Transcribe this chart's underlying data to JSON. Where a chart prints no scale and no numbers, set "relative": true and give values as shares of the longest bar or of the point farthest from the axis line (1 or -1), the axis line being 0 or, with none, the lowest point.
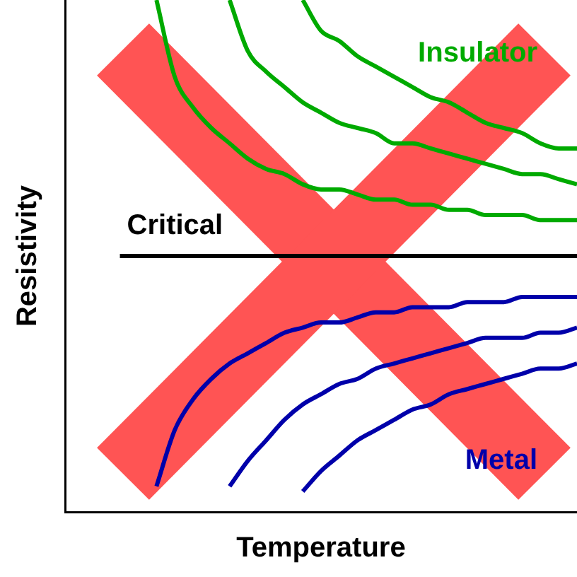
{
  "chart_data": {
    "type": "line",
    "relative": true,
    "xlabel": "Temperature",
    "ylabel": "Resistivity",
    "legend": false,
    "grid": false,
    "marker": "none",
    "line_style": "solid",
    "categories": [
      null,
      null,
      null,
      null,
      null,
      null,
      null,
      null,
      null,
      null,
      null,
      null,
      null,
      null,
      null,
      null,
      null,
      null,
      null,
      null,
      null,
      null,
      null,
      null,
      null,
      null,
      null,
      null,
      null
    ],
    "series": [
      {
        "color": "#00aa00",
        "values": [
          null,
          null,
          null,
          null,
          null,
          1.0,
          0.85,
          0.79,
          0.75,
          0.72,
          0.69,
          0.67,
          0.66,
          0.64,
          0.63,
          0.63,
          0.62,
          0.61,
          0.61,
          0.6,
          0.6,
          0.59,
          0.59,
          0.58,
          0.58,
          0.58,
          0.57,
          0.57,
          0.57
        ]
      },
      {
        "color": "#00aa00",
        "values": [
          null,
          null,
          null,
          null,
          null,
          null,
          null,
          null,
          null,
          1.0,
          0.9,
          0.86,
          0.83,
          0.8,
          0.78,
          0.76,
          0.75,
          0.74,
          0.72,
          0.72,
          0.71,
          0.7,
          0.69,
          0.68,
          0.67,
          0.66,
          0.66,
          0.65,
          0.64
        ]
      },
      {
        "name": "Insulator",
        "color": "#00aa00",
        "values": [
          null,
          null,
          null,
          null,
          null,
          null,
          null,
          null,
          null,
          null,
          null,
          null,
          null,
          1.0,
          0.94,
          0.92,
          0.89,
          0.87,
          0.85,
          0.83,
          0.81,
          0.8,
          0.78,
          0.76,
          0.75,
          0.74,
          0.72,
          0.71,
          0.71
        ]
      },
      {
        "name": "Critical",
        "color": "#000000",
        "values": [
          null,
          null,
          null,
          0.5,
          0.5,
          0.5,
          0.5,
          0.5,
          0.5,
          0.5,
          0.5,
          0.5,
          0.5,
          0.5,
          0.5,
          0.5,
          0.5,
          0.5,
          0.5,
          0.5,
          0.5,
          0.5,
          0.5,
          0.5,
          0.5,
          0.5,
          0.5,
          0.5,
          0.5
        ]
      },
      {
        "color": "#0000aa",
        "values": [
          null,
          null,
          null,
          null,
          null,
          0.05,
          0.16,
          0.22,
          0.26,
          0.29,
          0.31,
          0.33,
          0.35,
          0.36,
          0.37,
          0.37,
          0.38,
          0.39,
          0.39,
          0.4,
          0.4,
          0.4,
          0.41,
          0.41,
          0.41,
          0.42,
          0.42,
          0.42,
          0.42
        ]
      },
      {
        "color": "#0000aa",
        "values": [
          null,
          null,
          null,
          null,
          null,
          null,
          null,
          null,
          null,
          0.05,
          0.1,
          0.14,
          0.18,
          0.21,
          0.23,
          0.25,
          0.26,
          0.28,
          0.29,
          0.3,
          0.31,
          0.32,
          0.33,
          0.34,
          0.34,
          0.34,
          0.35,
          0.35,
          0.36
        ]
      },
      {
        "name": "Metal",
        "color": "#0000aa",
        "values": [
          null,
          null,
          null,
          null,
          null,
          null,
          null,
          null,
          null,
          null,
          null,
          null,
          null,
          0.04,
          0.08,
          0.11,
          0.14,
          0.16,
          0.18,
          0.2,
          0.21,
          0.23,
          0.24,
          0.25,
          0.26,
          0.27,
          0.28,
          0.28,
          0.29
        ]
      }
    ]
  }
}
